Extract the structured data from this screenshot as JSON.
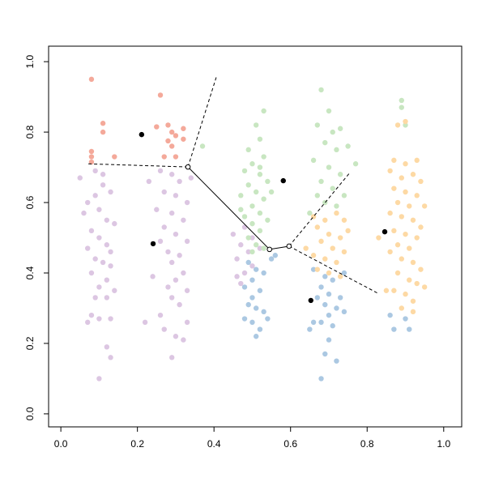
{
  "chart_data": {
    "type": "scatter",
    "xlim": [
      -0.032,
      1.047
    ],
    "ylim": [
      -0.037,
      1.044
    ],
    "xticks": [
      {
        "value": 0,
        "label": "0.0"
      },
      0.2,
      0.4,
      0.6,
      0.8,
      {
        "value": 1,
        "label": "1.0"
      }
    ],
    "yticks": [
      {
        "value": 0,
        "label": "0.0"
      },
      0.2,
      0.4,
      0.6,
      0.8,
      {
        "value": 1,
        "label": "1.0"
      }
    ],
    "grid": false,
    "series": [
      {
        "color": "#f4a99a",
        "marker": "filled",
        "x": [
          0.08,
          0.11,
          0.11,
          0.08,
          0.08,
          0.14,
          0.08,
          0.26,
          0.25,
          0.28,
          0.29,
          0.3,
          0.32,
          0.28,
          0.32,
          0.29,
          0.27,
          0.3
        ],
        "y": [
          0.95,
          0.825,
          0.8,
          0.745,
          0.73,
          0.73,
          0.715,
          0.905,
          0.815,
          0.82,
          0.8,
          0.79,
          0.81,
          0.775,
          0.78,
          0.76,
          0.73,
          0.73
        ]
      },
      {
        "color": "#dcc6e2",
        "marker": "filled",
        "x": [
          0.05,
          0.07,
          0.09,
          0.11,
          0.13,
          0.06,
          0.1,
          0.12,
          0.08,
          0.14,
          0.1,
          0.12,
          0.07,
          0.09,
          0.11,
          0.13,
          0.08,
          0.12,
          0.1,
          0.14,
          0.09,
          0.12,
          0.08,
          0.1,
          0.13,
          0.07,
          0.12,
          0.13,
          0.1,
          0.11,
          0.09,
          0.13,
          0.23,
          0.26,
          0.29,
          0.31,
          0.34,
          0.27,
          0.3,
          0.33,
          0.25,
          0.29,
          0.32,
          0.27,
          0.3,
          0.33,
          0.26,
          0.28,
          0.31,
          0.29,
          0.32,
          0.3,
          0.28,
          0.33,
          0.29,
          0.31,
          0.26,
          0.33,
          0.27,
          0.3,
          0.32,
          0.29,
          0.22,
          0.24,
          0.45,
          0.47,
          0.49,
          0.46,
          0.5,
          0.48,
          0.46,
          0.5,
          0.52,
          0.48,
          0.47
        ],
        "y": [
          0.67,
          0.6,
          0.62,
          0.65,
          0.63,
          0.57,
          0.58,
          0.55,
          0.52,
          0.54,
          0.5,
          0.48,
          0.47,
          0.44,
          0.43,
          0.42,
          0.4,
          0.38,
          0.36,
          0.35,
          0.33,
          0.33,
          0.28,
          0.27,
          0.27,
          0.26,
          0.19,
          0.16,
          0.1,
          0.68,
          0.69,
          0.46,
          0.66,
          0.69,
          0.68,
          0.66,
          0.67,
          0.63,
          0.62,
          0.6,
          0.58,
          0.57,
          0.55,
          0.53,
          0.51,
          0.49,
          0.49,
          0.46,
          0.45,
          0.43,
          0.4,
          0.38,
          0.36,
          0.35,
          0.33,
          0.31,
          0.28,
          0.26,
          0.24,
          0.22,
          0.21,
          0.16,
          0.26,
          0.39,
          0.51,
          0.48,
          0.46,
          0.44,
          0.42,
          0.4,
          0.39,
          0.5,
          0.47,
          0.53,
          0.37
        ]
      },
      {
        "color": "#c8e6c1",
        "marker": "filled",
        "x": [
          0.53,
          0.51,
          0.52,
          0.49,
          0.53,
          0.5,
          0.48,
          0.52,
          0.54,
          0.49,
          0.51,
          0.47,
          0.53,
          0.5,
          0.52,
          0.48,
          0.54,
          0.5,
          0.52,
          0.49,
          0.51,
          0.53,
          0.47,
          0.55,
          0.52,
          0.5,
          0.68,
          0.7,
          0.67,
          0.71,
          0.73,
          0.69,
          0.72,
          0.66,
          0.7,
          0.73,
          0.68,
          0.71,
          0.67,
          0.69,
          0.72,
          0.65,
          0.74,
          0.89,
          0.89,
          0.9,
          0.75,
          0.77,
          0.37
        ],
        "y": [
          0.86,
          0.82,
          0.78,
          0.75,
          0.73,
          0.71,
          0.69,
          0.68,
          0.66,
          0.65,
          0.63,
          0.62,
          0.61,
          0.59,
          0.57,
          0.56,
          0.55,
          0.54,
          0.52,
          0.5,
          0.48,
          0.47,
          0.58,
          0.63,
          0.7,
          0.46,
          0.92,
          0.86,
          0.82,
          0.8,
          0.81,
          0.77,
          0.75,
          0.72,
          0.7,
          0.68,
          0.66,
          0.64,
          0.62,
          0.6,
          0.59,
          0.57,
          0.62,
          0.89,
          0.87,
          0.82,
          0.76,
          0.71,
          0.76
        ]
      },
      {
        "color": "#abc8e2",
        "marker": "filled",
        "x": [
          0.49,
          0.51,
          0.53,
          0.5,
          0.48,
          0.52,
          0.5,
          0.49,
          0.51,
          0.53,
          0.48,
          0.5,
          0.52,
          0.51,
          0.55,
          0.56,
          0.54,
          0.66,
          0.69,
          0.71,
          0.68,
          0.7,
          0.73,
          0.67,
          0.69,
          0.72,
          0.74,
          0.7,
          0.66,
          0.68,
          0.71,
          0.65,
          0.7,
          0.69,
          0.72,
          0.68,
          0.74,
          0.86,
          0.87,
          0.9,
          0.91
        ],
        "y": [
          0.43,
          0.41,
          0.4,
          0.38,
          0.36,
          0.35,
          0.33,
          0.31,
          0.3,
          0.29,
          0.27,
          0.26,
          0.24,
          0.22,
          0.44,
          0.45,
          0.27,
          0.41,
          0.39,
          0.38,
          0.36,
          0.34,
          0.33,
          0.33,
          0.31,
          0.3,
          0.29,
          0.28,
          0.26,
          0.26,
          0.25,
          0.24,
          0.21,
          0.17,
          0.15,
          0.1,
          0.4,
          0.28,
          0.24,
          0.27,
          0.24
        ]
      },
      {
        "color": "#fdd9a4",
        "marker": "filled",
        "x": [
          0.66,
          0.69,
          0.72,
          0.74,
          0.67,
          0.7,
          0.73,
          0.68,
          0.71,
          0.74,
          0.66,
          0.69,
          0.72,
          0.67,
          0.7,
          0.73,
          0.64,
          0.75,
          0.88,
          0.9,
          0.87,
          0.9,
          0.93,
          0.86,
          0.89,
          0.92,
          0.94,
          0.87,
          0.9,
          0.93,
          0.88,
          0.91,
          0.95,
          0.86,
          0.89,
          0.92,
          0.94,
          0.87,
          0.9,
          0.93,
          0.88,
          0.91,
          0.86,
          0.89,
          0.92,
          0.94,
          0.88,
          0.91,
          0.93,
          0.87,
          0.9,
          0.92,
          0.95,
          0.89,
          0.92,
          0.85,
          0.83
        ],
        "y": [
          0.56,
          0.55,
          0.57,
          0.55,
          0.53,
          0.51,
          0.5,
          0.49,
          0.47,
          0.46,
          0.45,
          0.44,
          0.43,
          0.41,
          0.4,
          0.39,
          0.47,
          0.52,
          0.82,
          0.83,
          0.72,
          0.71,
          0.72,
          0.69,
          0.67,
          0.68,
          0.66,
          0.64,
          0.63,
          0.62,
          0.6,
          0.59,
          0.59,
          0.57,
          0.56,
          0.55,
          0.53,
          0.52,
          0.51,
          0.5,
          0.48,
          0.47,
          0.46,
          0.44,
          0.43,
          0.41,
          0.4,
          0.38,
          0.37,
          0.35,
          0.34,
          0.32,
          0.36,
          0.3,
          0.29,
          0.35,
          0.5
        ]
      },
      {
        "color": "#000000",
        "marker": "filled",
        "x": [
          0.211,
          0.241,
          0.581,
          0.653,
          0.846
        ],
        "y": [
          0.793,
          0.483,
          0.662,
          0.322,
          0.517
        ]
      },
      {
        "color": "#000000",
        "marker": "open",
        "x": [
          0.332,
          0.545,
          0.596
        ],
        "y": [
          0.701,
          0.467,
          0.476
        ]
      }
    ],
    "lines": [
      {
        "color": "#000000",
        "dashed": false,
        "x": [
          0.332,
          0.545,
          0.596
        ],
        "y": [
          0.701,
          0.467,
          0.476
        ]
      },
      {
        "color": "#000000",
        "dashed": true,
        "x": [
          0.332,
          0.406
        ],
        "y": [
          0.701,
          0.956
        ]
      },
      {
        "color": "#000000",
        "dashed": true,
        "x": [
          0.332,
          0.07
        ],
        "y": [
          0.701,
          0.71
        ]
      },
      {
        "color": "#000000",
        "dashed": true,
        "x": [
          0.596,
          0.755
        ],
        "y": [
          0.476,
          0.685
        ]
      },
      {
        "color": "#000000",
        "dashed": true,
        "x": [
          0.596,
          0.827
        ],
        "y": [
          0.476,
          0.343
        ]
      }
    ]
  }
}
